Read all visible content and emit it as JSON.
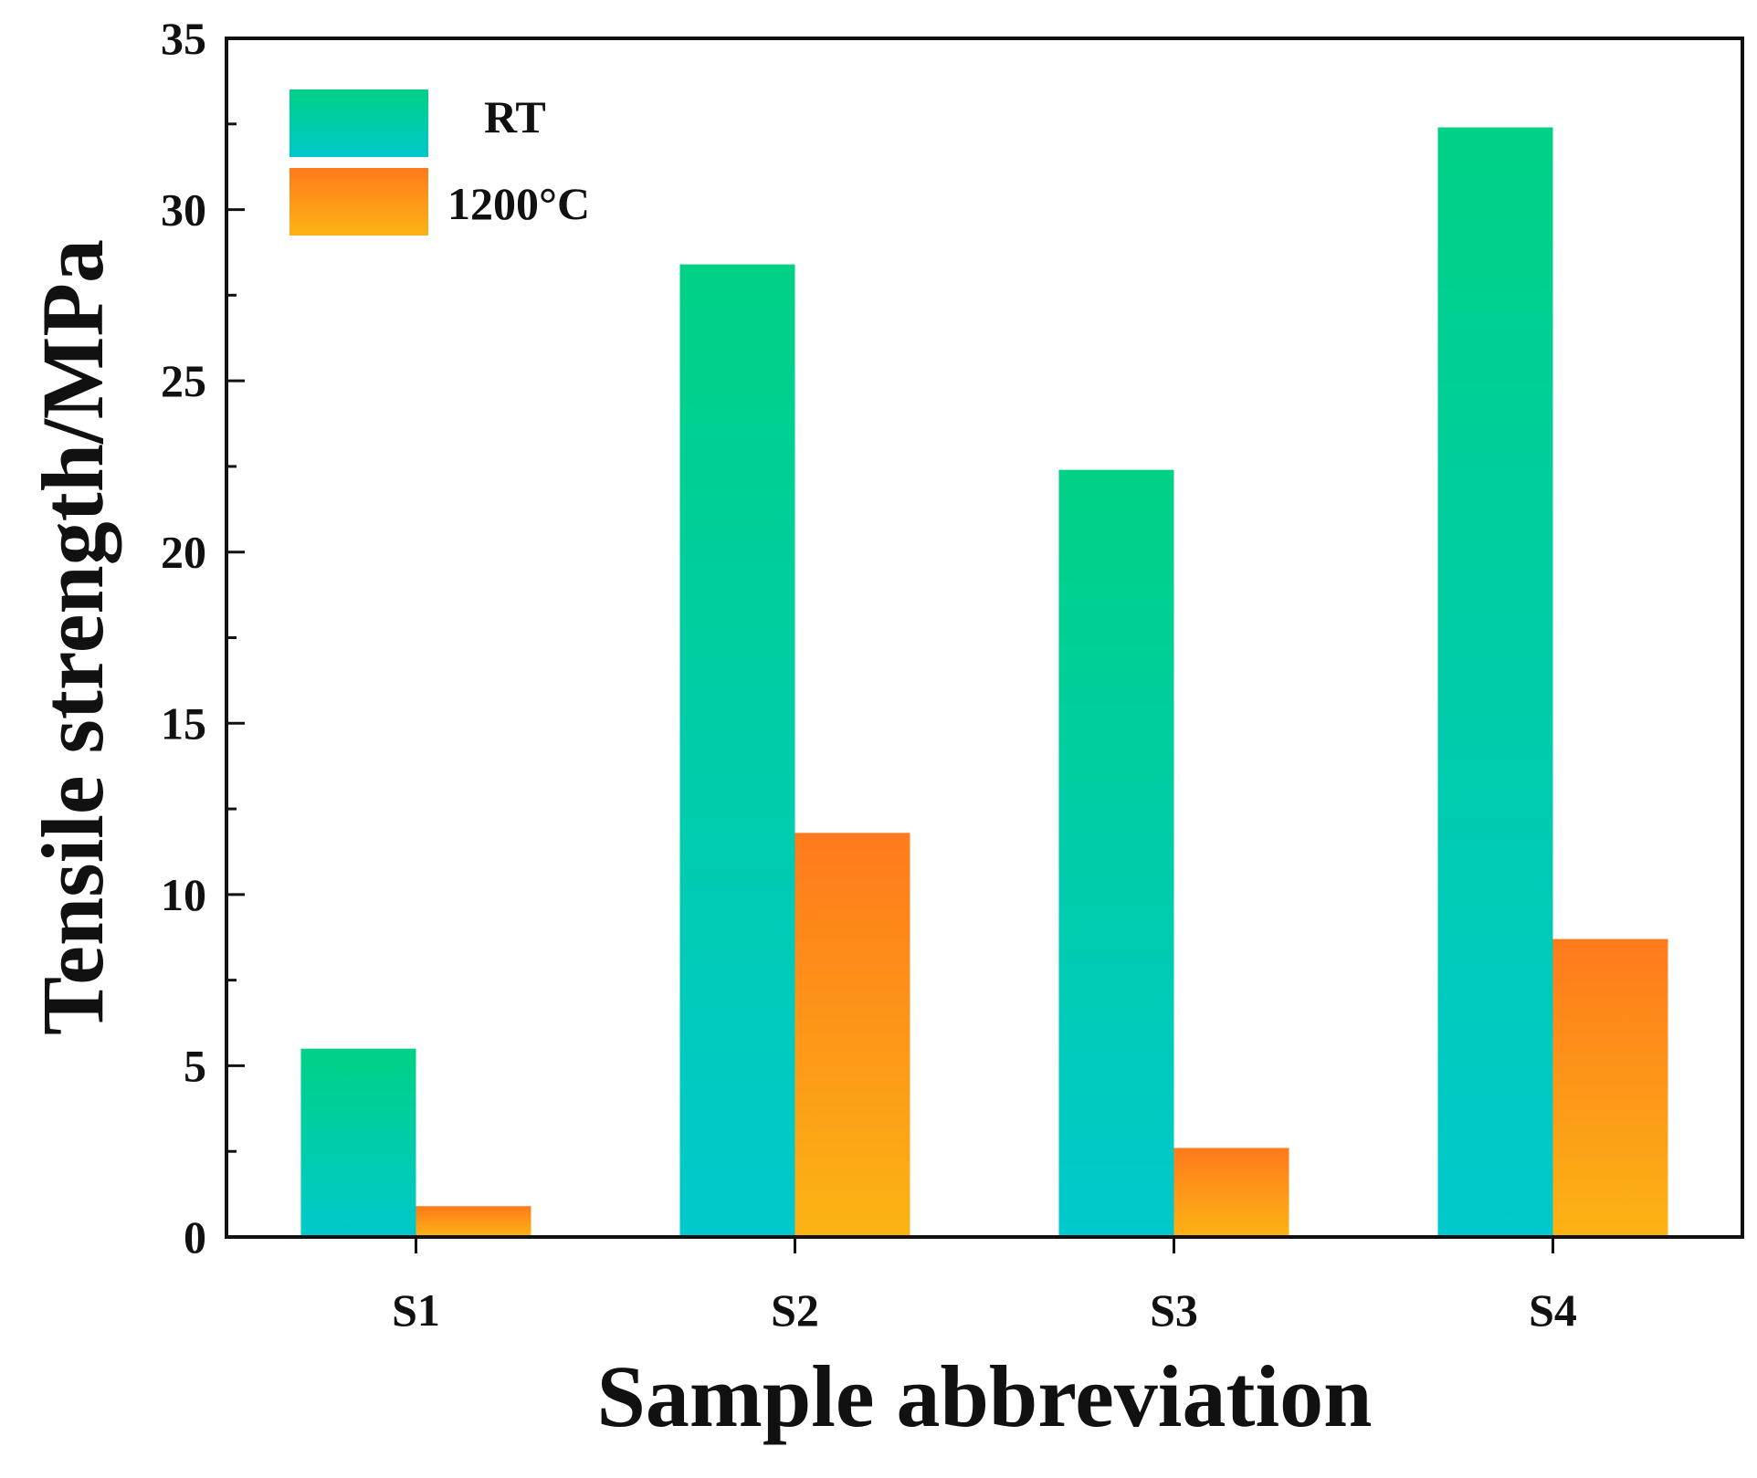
{
  "chart_data": {
    "type": "bar",
    "title": "",
    "xlabel": "Sample abbreviation",
    "ylabel": "Tensile strength/MPa",
    "ylim": [
      0,
      35
    ],
    "yticks": [
      0,
      5,
      10,
      15,
      20,
      25,
      30,
      35
    ],
    "ytick_labels": [
      "0",
      "5",
      "10",
      "15",
      "20",
      "25",
      "30",
      "35"
    ],
    "categories": [
      "S1",
      "S2",
      "S3",
      "S4"
    ],
    "series": [
      {
        "name": "RT",
        "values": [
          5.5,
          28.4,
          22.4,
          32.4
        ],
        "color_top": "#00d185",
        "color_bottom": "#00c8cc"
      },
      {
        "name": "1200°C",
        "values": [
          0.9,
          11.8,
          2.6,
          8.7
        ],
        "color_top": "#ff7a1c",
        "color_bottom": "#fbb414"
      }
    ],
    "legend_position": "top-left",
    "grid": false
  }
}
